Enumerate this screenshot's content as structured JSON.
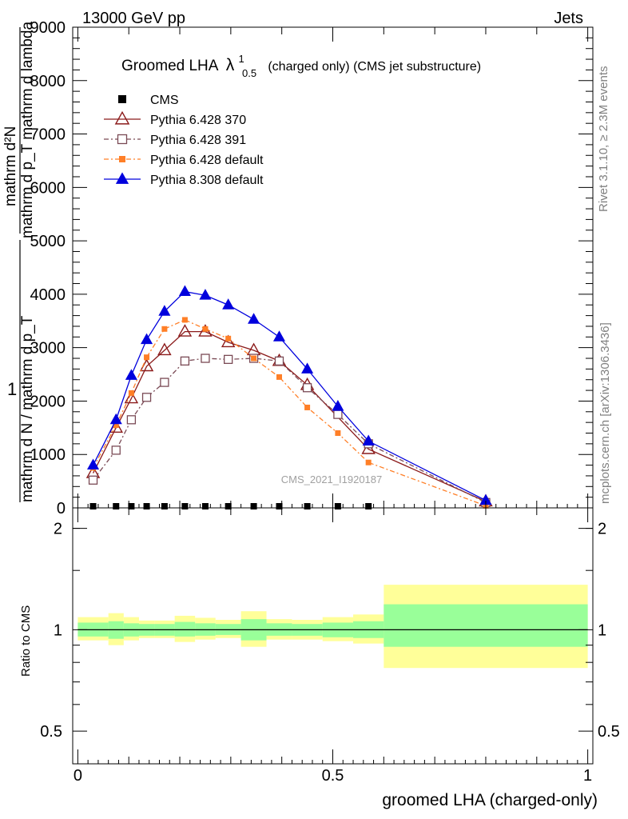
{
  "header": {
    "left": "13000 GeV pp",
    "right": "Jets"
  },
  "side_labels": {
    "rivet": "Rivet 3.1.10, ≥ 2.3M events",
    "mcplots": "mcplots.cern.ch [arXiv:1306.3436]"
  },
  "colors": {
    "band_inner": "#99ff99",
    "band_outer": "#ffff99",
    "cms": "#000000",
    "p370": "#8b1a1a",
    "p391": "#7a4a55",
    "p6def": "#ff7f27",
    "p8def": "#0000dd"
  },
  "chart_data": {
    "type": "line",
    "title_main": "Groomed LHA",
    "title_lambda": "λ",
    "title_sup": "1",
    "title_sub": "0.5",
    "title_suffix": "(charged only) (CMS jet substructure)",
    "ylabel_parts": {
      "num_top": "mathrm d²N",
      "num_bottom": "mathrm d p_T mathrm d lambda",
      "one": "1",
      "den_top": "mathrm d N / mathrm d p_T"
    },
    "xlabel": "groomed LHA (charged-only)",
    "ratio_ylabel": "Ratio to CMS",
    "watermark": "CMS_2021_I1920187",
    "xlim": [
      -0.01,
      1.01
    ],
    "ylim": [
      0,
      9000
    ],
    "ratio_ylim": [
      0.4,
      2.3
    ],
    "x_ticks": [
      {
        "v": 0,
        "label": "0"
      },
      {
        "v": 0.5,
        "label": "0.5"
      },
      {
        "v": 1,
        "label": "1"
      }
    ],
    "y_ticks": [
      {
        "v": 1000,
        "label": "1000"
      },
      {
        "v": 2000,
        "label": "2000"
      },
      {
        "v": 3000,
        "label": "3000"
      },
      {
        "v": 4000,
        "label": "4000"
      },
      {
        "v": 5000,
        "label": "5000"
      },
      {
        "v": 6000,
        "label": "6000"
      },
      {
        "v": 7000,
        "label": "7000"
      },
      {
        "v": 8000,
        "label": "8000"
      },
      {
        "v": 9000,
        "label": "9000"
      }
    ],
    "ratio_ticks": [
      {
        "v": 0.5,
        "label": "0.5"
      },
      {
        "v": 1,
        "label": "1"
      },
      {
        "v": 2,
        "label": "2"
      }
    ],
    "bins": [
      {
        "lo": 0.0,
        "hi": 0.06,
        "inner": [
          0.955,
          1.05
        ],
        "outer": [
          0.93,
          1.09
        ]
      },
      {
        "lo": 0.06,
        "hi": 0.09,
        "inner": [
          0.94,
          1.06
        ],
        "outer": [
          0.9,
          1.12
        ]
      },
      {
        "lo": 0.09,
        "hi": 0.12,
        "inner": [
          0.955,
          1.045
        ],
        "outer": [
          0.93,
          1.09
        ]
      },
      {
        "lo": 0.12,
        "hi": 0.15,
        "inner": [
          0.96,
          1.04
        ],
        "outer": [
          0.945,
          1.065
        ]
      },
      {
        "lo": 0.15,
        "hi": 0.19,
        "inner": [
          0.96,
          1.04
        ],
        "outer": [
          0.945,
          1.065
        ]
      },
      {
        "lo": 0.19,
        "hi": 0.23,
        "inner": [
          0.955,
          1.055
        ],
        "outer": [
          0.92,
          1.1
        ]
      },
      {
        "lo": 0.23,
        "hi": 0.27,
        "inner": [
          0.96,
          1.045
        ],
        "outer": [
          0.935,
          1.085
        ]
      },
      {
        "lo": 0.27,
        "hi": 0.32,
        "inner": [
          0.965,
          1.04
        ],
        "outer": [
          0.945,
          1.07
        ]
      },
      {
        "lo": 0.32,
        "hi": 0.37,
        "inner": [
          0.93,
          1.075
        ],
        "outer": [
          0.89,
          1.135
        ]
      },
      {
        "lo": 0.37,
        "hi": 0.42,
        "inner": [
          0.96,
          1.045
        ],
        "outer": [
          0.935,
          1.075
        ]
      },
      {
        "lo": 0.42,
        "hi": 0.48,
        "inner": [
          0.96,
          1.04
        ],
        "outer": [
          0.935,
          1.07
        ]
      },
      {
        "lo": 0.48,
        "hi": 0.54,
        "inner": [
          0.95,
          1.05
        ],
        "outer": [
          0.925,
          1.09
        ]
      },
      {
        "lo": 0.54,
        "hi": 0.6,
        "inner": [
          0.945,
          1.06
        ],
        "outer": [
          0.91,
          1.11
        ]
      },
      {
        "lo": 0.6,
        "hi": 1.0,
        "inner": [
          0.89,
          1.19
        ],
        "outer": [
          0.77,
          1.36
        ]
      }
    ],
    "cms_x": [
      0.03,
      0.075,
      0.105,
      0.135,
      0.17,
      0.21,
      0.25,
      0.295,
      0.345,
      0.395,
      0.45,
      0.51,
      0.57
    ],
    "series": [
      {
        "name": "CMS",
        "key": "cms",
        "marker": "square",
        "filled": true,
        "dash": "",
        "x": [
          0.03,
          0.075,
          0.105,
          0.135,
          0.17,
          0.21,
          0.25,
          0.295,
          0.345,
          0.395,
          0.45,
          0.51,
          0.57
        ],
        "values": [
          0,
          0,
          0,
          0,
          0,
          0,
          0,
          0,
          0,
          0,
          0,
          0,
          0
        ]
      },
      {
        "name": "Pythia 6.428 370",
        "key": "p370",
        "marker": "triangle",
        "filled": false,
        "dash": "",
        "x": [
          0.03,
          0.075,
          0.105,
          0.135,
          0.17,
          0.21,
          0.25,
          0.295,
          0.345,
          0.395,
          0.45,
          0.57,
          0.8
        ],
        "values": [
          650,
          1500,
          2050,
          2650,
          2950,
          3300,
          3300,
          3100,
          2950,
          2750,
          2300,
          1100,
          120
        ]
      },
      {
        "name": "Pythia 6.428 391",
        "key": "p391",
        "marker": "square",
        "filled": false,
        "dash": "6,3,2,3",
        "x": [
          0.03,
          0.075,
          0.105,
          0.135,
          0.17,
          0.21,
          0.25,
          0.295,
          0.345,
          0.395,
          0.45,
          0.51,
          0.57,
          0.8
        ],
        "values": [
          520,
          1080,
          1650,
          2070,
          2350,
          2750,
          2800,
          2780,
          2800,
          2750,
          2250,
          1750,
          1200,
          100
        ]
      },
      {
        "name": "Pythia 6.428 default",
        "key": "p6def",
        "marker": "square",
        "filled": true,
        "dash": "6,3,2,3",
        "x": [
          0.03,
          0.075,
          0.105,
          0.135,
          0.17,
          0.21,
          0.25,
          0.295,
          0.345,
          0.395,
          0.45,
          0.51,
          0.57,
          0.8
        ],
        "values": [
          750,
          1550,
          2150,
          2820,
          3350,
          3520,
          3350,
          3170,
          2800,
          2450,
          1880,
          1400,
          850,
          40
        ]
      },
      {
        "name": "Pythia 8.308 default",
        "key": "p8def",
        "marker": "triangle",
        "filled": true,
        "dash": "",
        "x": [
          0.03,
          0.075,
          0.105,
          0.135,
          0.17,
          0.21,
          0.25,
          0.295,
          0.345,
          0.395,
          0.45,
          0.51,
          0.57,
          0.8
        ],
        "values": [
          800,
          1650,
          2480,
          3150,
          3680,
          4050,
          3980,
          3800,
          3530,
          3200,
          2600,
          1900,
          1250,
          140
        ]
      }
    ]
  }
}
